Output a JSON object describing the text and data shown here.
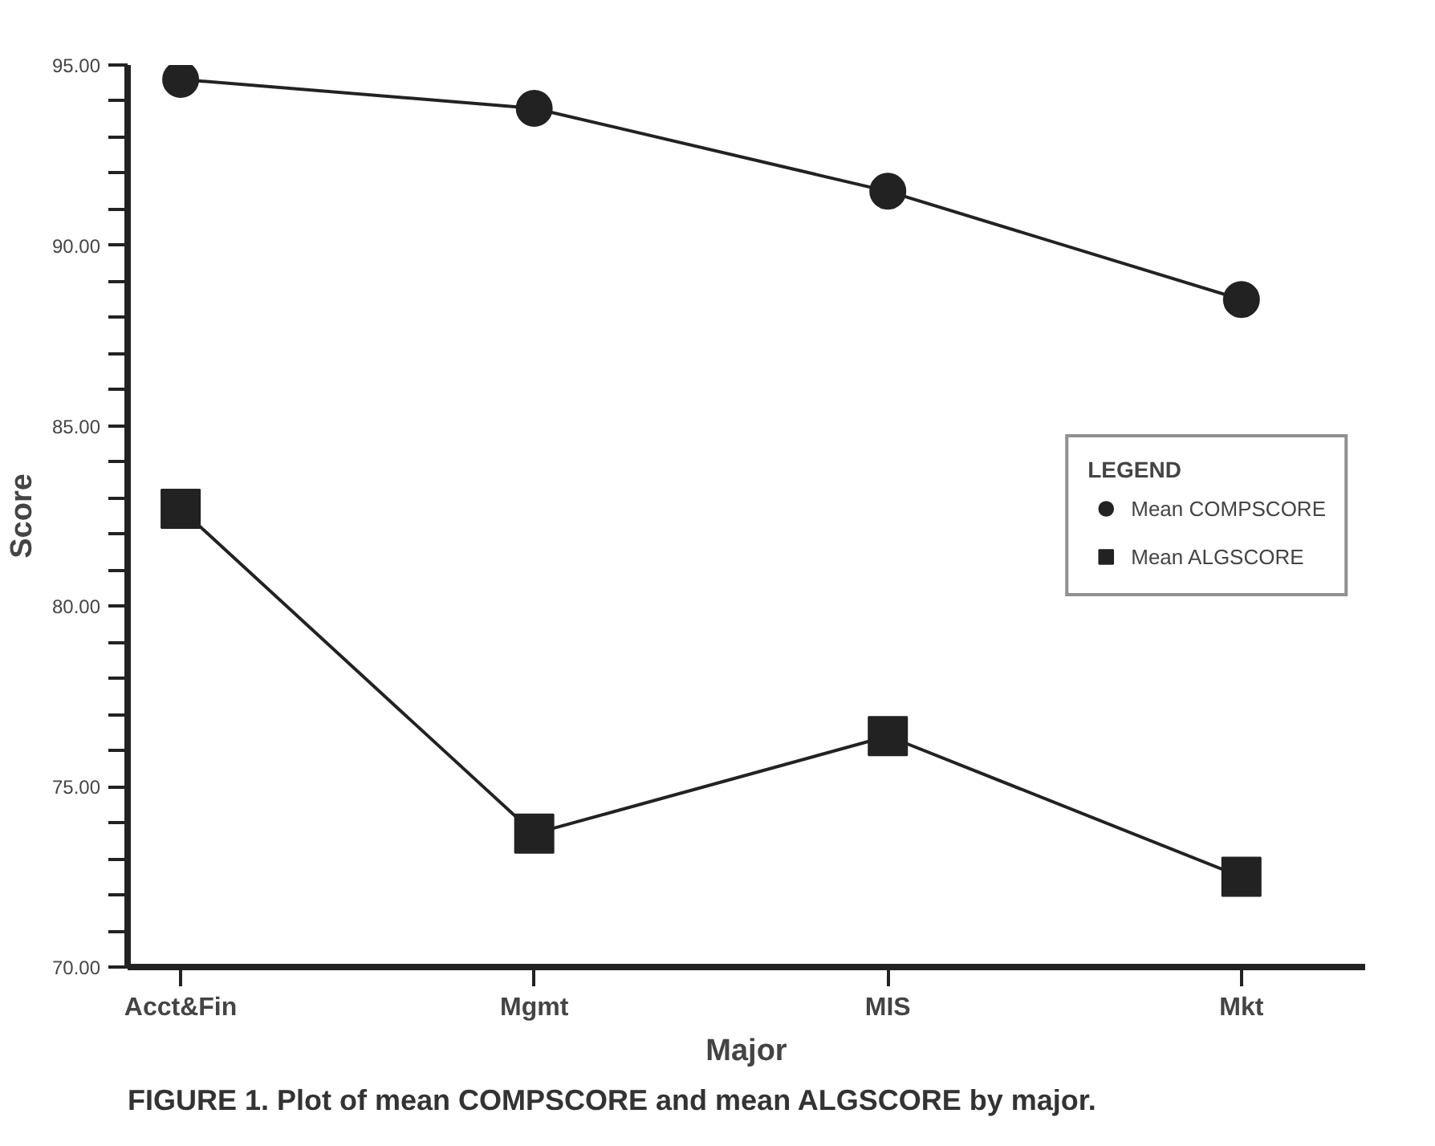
{
  "chart_data": {
    "type": "line",
    "xlabel": "Major",
    "ylabel": "Score",
    "legend_title": "LEGEND",
    "legend": "right",
    "grid": false,
    "categories": [
      "Acct&Fin",
      "Mgmt",
      "MIS",
      "Mkt"
    ],
    "series": [
      {
        "name": "Mean COMPSCORE",
        "color": "#222222",
        "marker": "circle",
        "values": [
          94.6,
          93.8,
          91.5,
          88.5
        ]
      },
      {
        "name": "Mean ALGSCORE",
        "color": "#222222",
        "marker": "square",
        "values": [
          82.7,
          73.7,
          76.4,
          72.5
        ]
      }
    ],
    "ylim": [
      70,
      95
    ],
    "yticks": [
      {
        "value": 70,
        "label": "70.00"
      },
      {
        "value": 71,
        "label": null
      },
      {
        "value": 72,
        "label": null
      },
      {
        "value": 73,
        "label": null
      },
      {
        "value": 74,
        "label": null
      },
      {
        "value": 75,
        "label": "75.00"
      },
      {
        "value": 76,
        "label": null
      },
      {
        "value": 77,
        "label": null
      },
      {
        "value": 78,
        "label": null
      },
      {
        "value": 79,
        "label": null
      },
      {
        "value": 80,
        "label": "80.00"
      },
      {
        "value": 81,
        "label": null
      },
      {
        "value": 82,
        "label": null
      },
      {
        "value": 83,
        "label": null
      },
      {
        "value": 84,
        "label": null
      },
      {
        "value": 85,
        "label": "85.00"
      },
      {
        "value": 86,
        "label": null
      },
      {
        "value": 87,
        "label": null
      },
      {
        "value": 88,
        "label": null
      },
      {
        "value": 89,
        "label": null
      },
      {
        "value": 90,
        "label": "90.00"
      },
      {
        "value": 91,
        "label": null
      },
      {
        "value": 92,
        "label": null
      },
      {
        "value": 93,
        "label": null
      },
      {
        "value": 94,
        "label": null
      },
      {
        "value": 95,
        "label": "95.00"
      }
    ],
    "annotations": [
      "FIGURE 1. Plot of mean COMPSCORE and mean ALGSCORE by major."
    ]
  }
}
